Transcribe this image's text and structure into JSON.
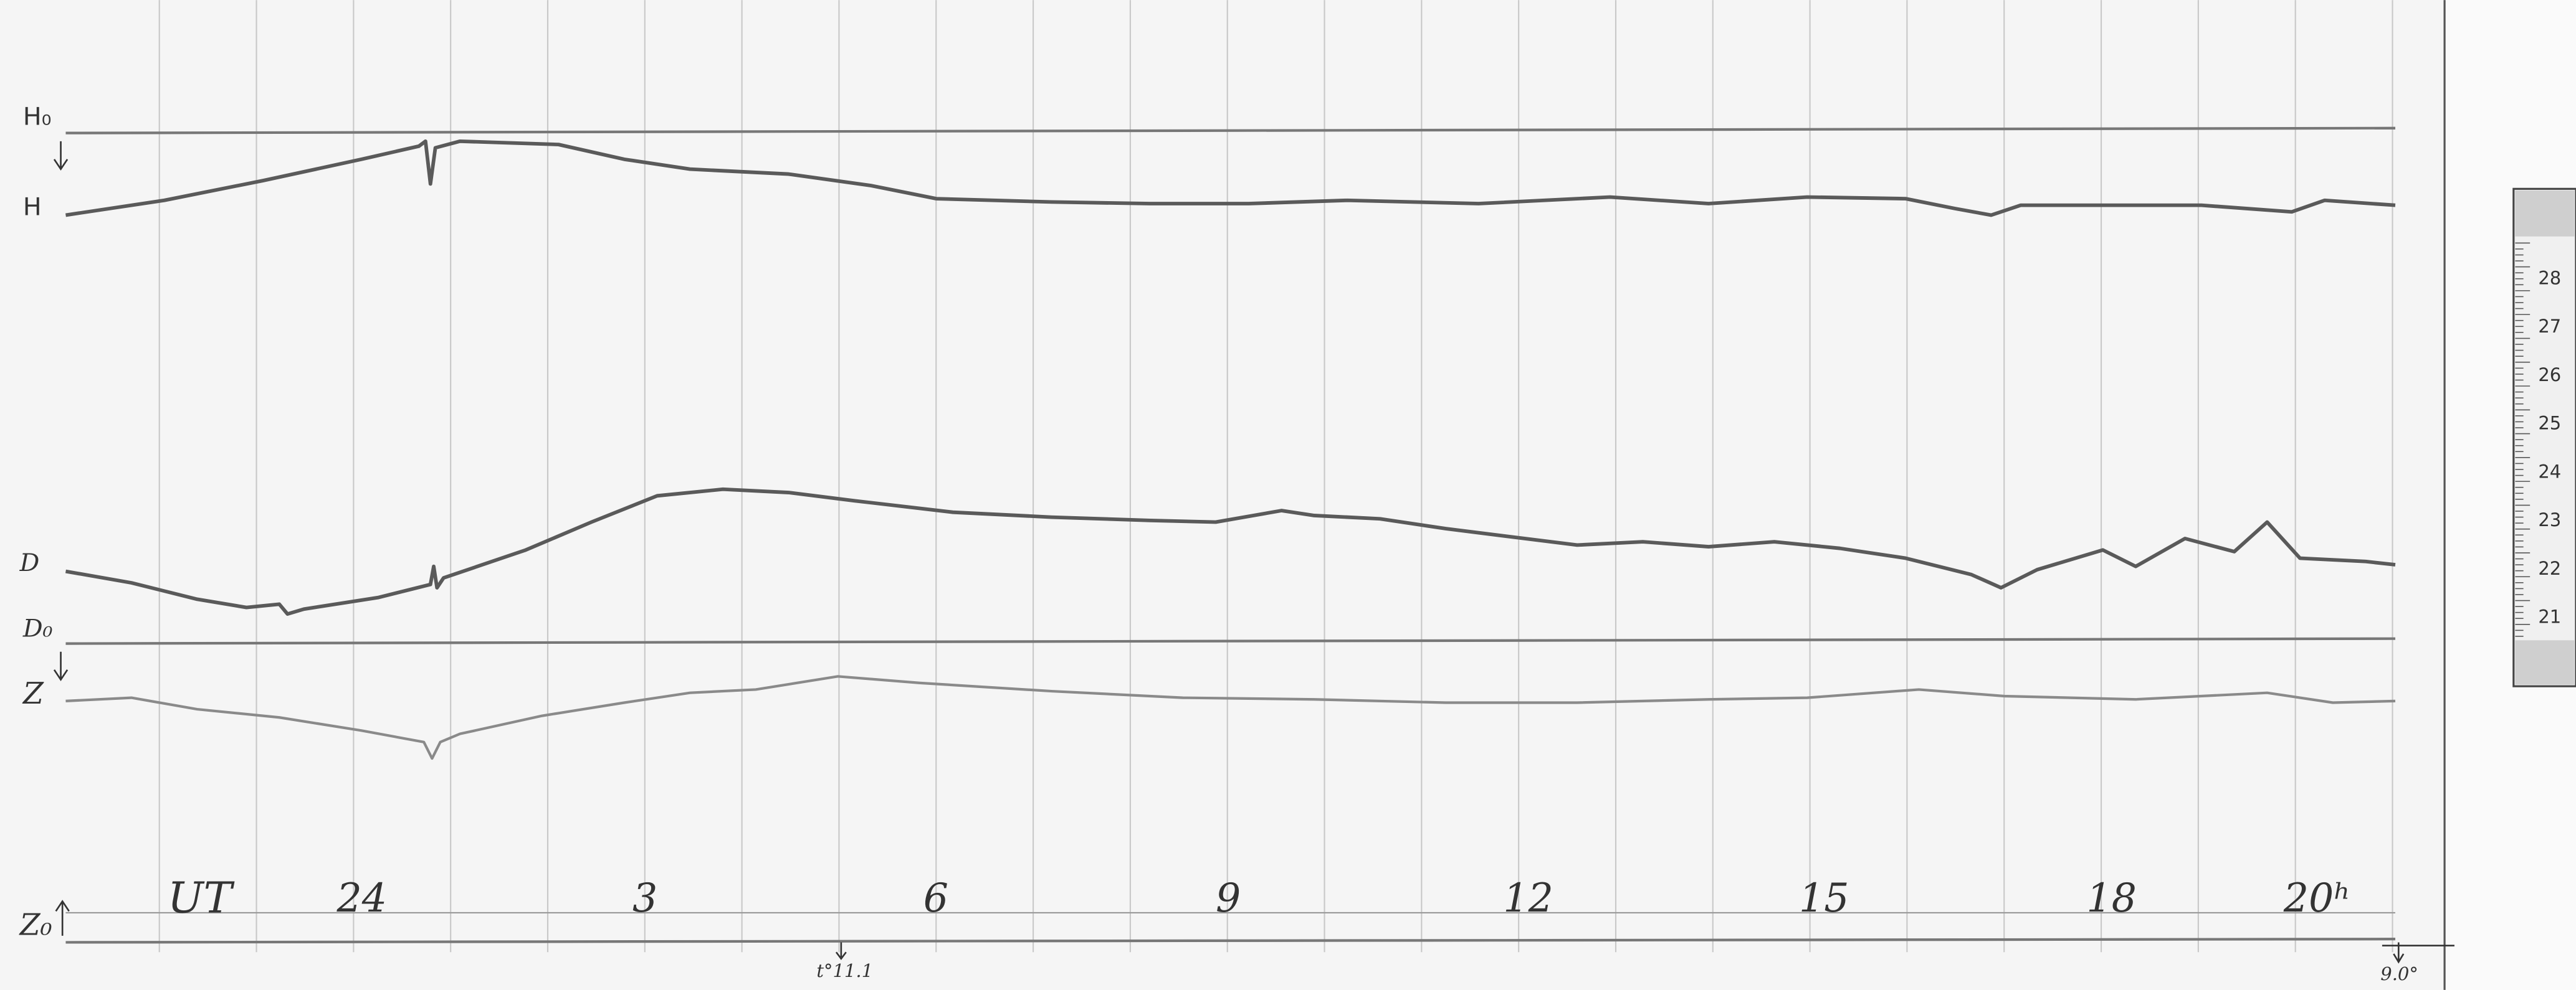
{
  "traces": {
    "h0": "H₀",
    "h": "H",
    "d": "D",
    "d0": "D₀",
    "z": "Z",
    "z0": "Z₀"
  },
  "time_axis": {
    "label": "UT",
    "hours": [
      "24",
      "3",
      "6",
      "9",
      "12",
      "15",
      "18",
      "20ʰ"
    ]
  },
  "notes": {
    "temperature": "t°11.1",
    "end_mark": "9.0°"
  },
  "ruler": [
    "28",
    "27",
    "26",
    "25",
    "24",
    "23",
    "22",
    "21"
  ]
}
